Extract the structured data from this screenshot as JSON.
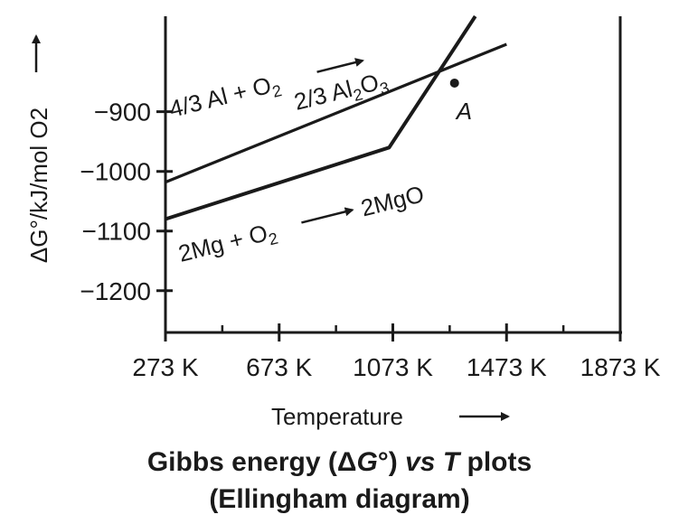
{
  "chart_data": {
    "type": "line",
    "title": "",
    "xlabel": "Temperature",
    "ylabel": "ΔG°/kJ/mol O2",
    "x_ticks": [
      "273 K",
      "673 K",
      "1073 K",
      "1473 K",
      "1873 K"
    ],
    "y_ticks": [
      "−900",
      "−1000",
      "−1100",
      "−1200"
    ],
    "x_tick_values": [
      273,
      673,
      1073,
      1473,
      1873
    ],
    "y_tick_values": [
      -900,
      -1000,
      -1100,
      -1200
    ],
    "xlim": [
      273,
      1873
    ],
    "ylim": [
      -1270,
      -740
    ],
    "grid": false,
    "series": [
      {
        "name": "4/3 Al + O2 → 2/3 Al2O3",
        "x": [
          273,
          1473
        ],
        "y": [
          -1018,
          -787
        ],
        "color": "#1a1a1a"
      },
      {
        "name": "2Mg + O2 → 2MgO",
        "x": [
          273,
          1060,
          1363
        ],
        "y": [
          -1080,
          -960,
          -740
        ],
        "color": "#1a1a1a"
      }
    ],
    "annotations": {
      "al_reaction": {
        "lhs": "4/3 Al + O",
        "lhs_sub": "2",
        "arrow": "→"
      },
      "al_product": {
        "pre": "2/3 Al",
        "sub1": "2",
        "mid": "O",
        "sub2": "3"
      },
      "mg_reaction": {
        "lhs": "2Mg + O",
        "lhs_sub": "2",
        "arrow": "→",
        "rhs": "2MgO"
      },
      "intersection": {
        "label": "A",
        "x": 1290,
        "y": -852
      }
    }
  },
  "caption": {
    "line1_a": "Gibbs energy (Δ",
    "line1_g": "G",
    "line1_b": "°) ",
    "line1_vs": "vs",
    "line1_c": " ",
    "line1_t": "T",
    "line1_d": " plots",
    "line2": "(Ellingham diagram)"
  }
}
